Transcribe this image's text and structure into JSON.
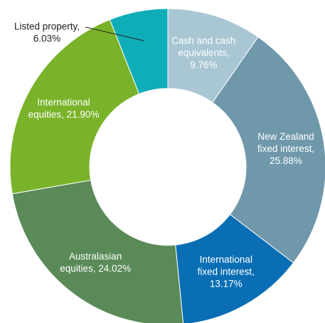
{
  "chart_data": {
    "type": "donut",
    "values": [
      9.76,
      25.88,
      13.17,
      24.02,
      21.9,
      6.03
    ],
    "value_labels": [
      "Cash and cash equivalents, 9.76%",
      "New Zealand fixed interest, 25.88%",
      "International fixed interest, 13.17%",
      "Australasian equities, 24.02%",
      "International equities, 21.90%",
      "Listed property, 6.03%"
    ],
    "colors": [
      "#a9c6d3",
      "#7098ab",
      "#0a6eb4",
      "#5a8a58",
      "#7ab32a",
      "#0fadb8"
    ]
  }
}
